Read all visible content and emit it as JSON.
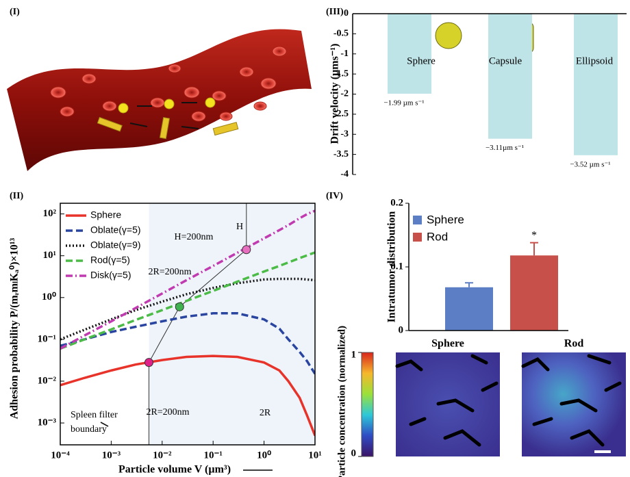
{
  "panel_labels": [
    "(I)",
    "(II)",
    "(III)",
    "(IV)"
  ],
  "chart_data": [
    {
      "type": "line",
      "log_x": true,
      "log_y": true,
      "xlabel": "Particle volume V (µm³)",
      "ylabel": "Adhesion probability P/(mᵣmₗKₐ⁰)×10¹³",
      "x": [
        0.0001,
        0.0003,
        0.001,
        0.003,
        0.01,
        0.03,
        0.1,
        0.3,
        1,
        2,
        3,
        5,
        7,
        10
      ],
      "series": [
        {
          "name": "Sphere",
          "color": "#e8332a",
          "style": "solid",
          "values": [
            0.008,
            0.012,
            0.018,
            0.025,
            0.032,
            0.038,
            0.04,
            0.038,
            0.028,
            0.018,
            0.01,
            0.004,
            0.0015,
            0.0005
          ]
        },
        {
          "name": "Oblate(γ=5)",
          "color": "#2a45a0",
          "style": "dashed",
          "values": [
            0.07,
            0.1,
            0.15,
            0.2,
            0.27,
            0.35,
            0.42,
            0.42,
            0.3,
            0.18,
            0.1,
            0.05,
            0.03,
            0.015
          ]
        },
        {
          "name": "Oblate(γ=9)",
          "color": "#111111",
          "style": "dotted",
          "values": [
            0.1,
            0.17,
            0.3,
            0.5,
            0.8,
            1.2,
            1.7,
            2.2,
            2.7,
            2.8,
            2.8,
            2.8,
            2.7,
            2.6
          ]
        },
        {
          "name": "Rod(γ=5)",
          "color": "#4cbb47",
          "style": "dashed",
          "values": [
            0.06,
            0.1,
            0.173,
            0.29,
            0.5,
            0.83,
            1.44,
            2.4,
            4.2,
            5.7,
            6.9,
            8.8,
            10.2,
            12
          ]
        },
        {
          "name": "Disk(γ=5)",
          "color": "#c13bb0",
          "style": "dashdot",
          "values": [
            0.06,
            0.124,
            0.27,
            0.56,
            1.25,
            2.6,
            5.7,
            11.8,
            26,
            41,
            54,
            79,
            99,
            119
          ]
        }
      ],
      "xlim": [
        0.0001,
        10
      ],
      "ylim": [
        0.0003,
        180
      ],
      "xticks": [
        {
          "value": 0.0001,
          "label": "10⁻⁴"
        },
        {
          "value": 0.001,
          "label": "10⁻³"
        },
        {
          "value": 0.01,
          "label": "10⁻²"
        },
        {
          "value": 0.1,
          "label": "10⁻¹"
        },
        {
          "value": 1,
          "label": "10⁰"
        },
        {
          "value": 10,
          "label": "10¹"
        }
      ],
      "yticks": [
        {
          "value": 0.001,
          "label": "10⁻³"
        },
        {
          "value": 0.01,
          "label": "10⁻²"
        },
        {
          "value": 0.1,
          "label": "10⁻¹"
        },
        {
          "value": 1,
          "label": "10⁰"
        },
        {
          "value": 10,
          "label": "10¹"
        },
        {
          "value": 100,
          "label": "10²"
        }
      ],
      "legend": "upper left",
      "highlights": {
        "x": [
          0.0055,
          0.022,
          0.45
        ],
        "y": [
          0.028,
          0.6,
          14
        ],
        "colors": [
          "#e0218a",
          "#3fb34f",
          "#e86fbf"
        ]
      },
      "annotations": [
        "H=200nm",
        "2R=200nm",
        "2R=200nm",
        "Spleen filter",
        "boundary",
        "H",
        "2R"
      ]
    },
    {
      "type": "bar",
      "ylabel": "Drift velocity (µms⁻¹)",
      "categories": [
        "Sphere",
        "Capsule",
        "Ellipsoid"
      ],
      "values": [
        -1.99,
        -3.11,
        -3.52
      ],
      "value_labels": [
        "−1.99 µm s⁻¹",
        "−3.11µm s⁻¹",
        "−3.52 µm s⁻¹"
      ],
      "color": "#bfe4e8",
      "ylim": [
        -4,
        0
      ],
      "yticks": [
        0,
        -0.5,
        -1,
        -1.5,
        -2,
        -2.5,
        -3,
        -3.5,
        -4
      ]
    },
    {
      "type": "bar_error",
      "ylabel": "Intratumor distribution",
      "categories": [
        "Sphere",
        "Rod"
      ],
      "values": [
        0.068,
        0.118
      ],
      "errors": [
        0.007,
        0.02
      ],
      "colors": [
        "#5b7ec4",
        "#c8504a"
      ],
      "legend": "upper left",
      "ylim": [
        0,
        0.2
      ],
      "yticks": [
        0,
        0.1,
        0.2
      ],
      "annotations": [
        "*"
      ]
    },
    {
      "type": "heatmap",
      "titles": [
        "Sphere",
        "Rod"
      ],
      "colorbar_label": "Particle concentration (normalized)",
      "colorbar_ticks": [
        0,
        1
      ],
      "colorbar_lim": [
        0,
        1
      ]
    }
  ]
}
